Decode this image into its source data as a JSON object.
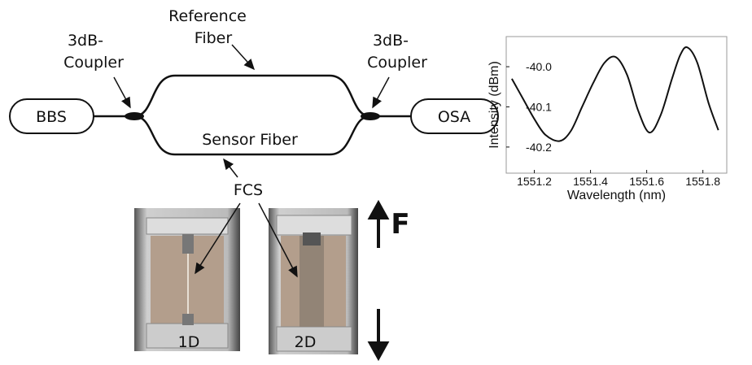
{
  "nodes": [
    {
      "label": "BBS"
    },
    {
      "label": "OSA"
    }
  ],
  "reference_fiber": [
    "Reference",
    "Fiber"
  ],
  "couplers": [
    [
      "3dB-",
      "Coupler"
    ],
    [
      "3dB-",
      "Coupler"
    ]
  ],
  "sensor_fiber": "Sensor Fiber",
  "fcs": "FCS",
  "force": "F",
  "photos": [
    {
      "label": "1D"
    },
    {
      "label": "2D"
    }
  ],
  "chart": {
    "type": "line",
    "x_label": "Wavelength (nm)",
    "y_label": "Intensity (dBm)",
    "x": [
      1551.12,
      1551.16,
      1551.2,
      1551.24,
      1551.29,
      1551.33,
      1551.37,
      1551.41,
      1551.45,
      1551.49,
      1551.53,
      1551.57,
      1551.61,
      1551.65,
      1551.69,
      1551.72,
      1551.745,
      1551.78,
      1551.82,
      1551.855
    ],
    "values": [
      -40.03,
      -40.08,
      -40.13,
      -40.17,
      -40.185,
      -40.16,
      -40.1,
      -40.04,
      -39.99,
      -39.976,
      -40.02,
      -40.11,
      -40.164,
      -40.12,
      -40.03,
      -39.97,
      -39.952,
      -39.99,
      -40.09,
      -40.158
    ],
    "color": "#111111",
    "xlim": [
      1551.1,
      1551.885
    ],
    "ylim": [
      -40.265,
      -39.925
    ],
    "xticks": [
      1551.2,
      1551.4,
      1551.6,
      1551.8
    ],
    "yticks": [
      {
        "value": -40.0,
        "label": "-40.0"
      },
      -40.1,
      -40.2
    ]
  }
}
